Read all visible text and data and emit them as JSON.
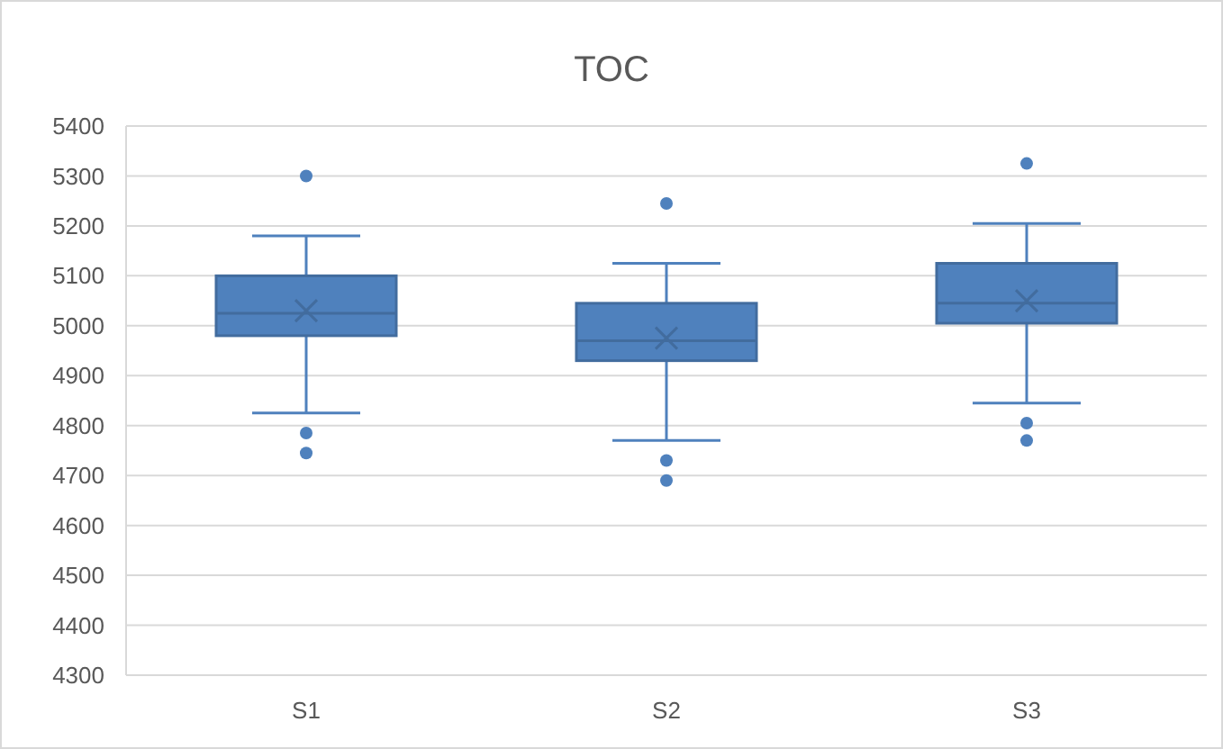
{
  "chart_data": {
    "type": "box",
    "title": "TOC",
    "categories": [
      "S1",
      "S2",
      "S3"
    ],
    "color": "#4f81bd",
    "boxes": [
      {
        "low": 4825,
        "q1": 4980,
        "median": 5025,
        "q3": 5100,
        "high": 5180,
        "mean": 5030,
        "outliers": [
          5300,
          4785,
          4745
        ]
      },
      {
        "low": 4770,
        "q1": 4930,
        "median": 4970,
        "q3": 5045,
        "high": 5125,
        "mean": 4975,
        "outliers": [
          5245,
          4730,
          4690
        ]
      },
      {
        "low": 4845,
        "q1": 5005,
        "median": 5045,
        "q3": 5125,
        "high": 5205,
        "mean": 5050,
        "outliers": [
          5325,
          4805,
          4770
        ]
      }
    ],
    "ylim": [
      4300,
      5400
    ],
    "yticks": [
      4300,
      4400,
      4500,
      4600,
      4700,
      4800,
      4900,
      5000,
      5100,
      5200,
      5300,
      5400
    ],
    "grid": "y"
  }
}
